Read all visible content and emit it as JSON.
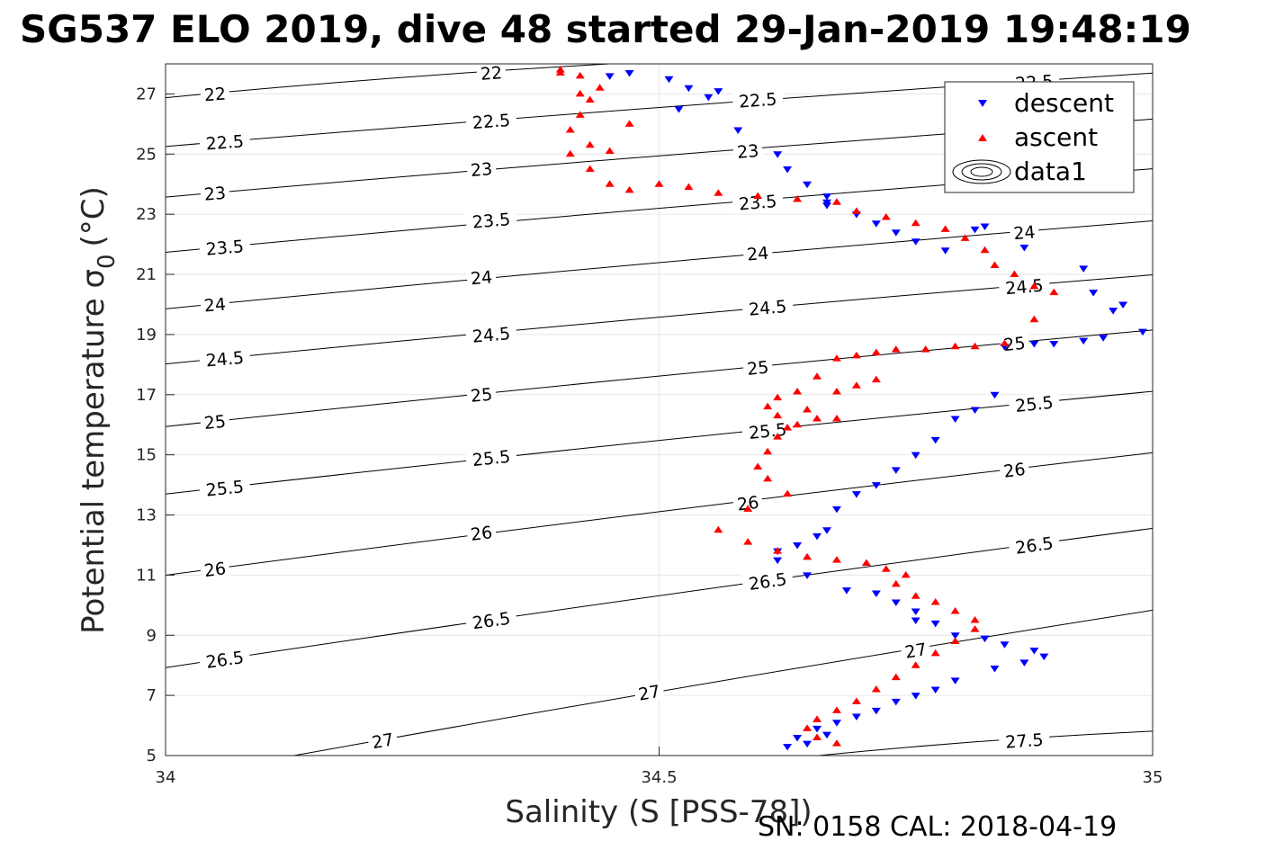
{
  "title": "SG537 ELO 2019, dive 48 started 29-Jan-2019 19:48:19",
  "footer": "SN: 0158  CAL: 2018-04-19",
  "chart_data": {
    "type": "scatter",
    "xlabel": "Salinity (S [PSS-78])",
    "ylabel": "Potential temperature σ₀ (°C)",
    "ylabel_main": "Potential temperature σ",
    "ylabel_sub": "0",
    "ylabel_unit": "(°C)",
    "xlim": [
      34,
      35
    ],
    "ylim": [
      5,
      28
    ],
    "xticks": [
      34,
      34.5,
      35
    ],
    "xtick_labels": [
      "34",
      "34.5",
      "35"
    ],
    "yticks": [
      5,
      7,
      9,
      11,
      13,
      15,
      17,
      19,
      21,
      23,
      25,
      27
    ],
    "ytick_labels": [
      "5",
      "7",
      "9",
      "11",
      "13",
      "15",
      "17",
      "19",
      "21",
      "23",
      "25",
      "27"
    ],
    "grid": true,
    "legend_position": "top-right",
    "legend": [
      {
        "label": "descent",
        "marker": "triangle-down",
        "color": "#0000ff"
      },
      {
        "label": "ascent",
        "marker": "triangle-up",
        "color": "#ff0000"
      },
      {
        "label": "data1",
        "marker": "contour",
        "color": "#000000"
      }
    ],
    "contours": [
      {
        "level": "22",
        "label_points": [
          [
            34.05,
            27.0
          ],
          [
            34.33,
            27.7
          ]
        ]
      },
      {
        "level": "22.5",
        "label_points": [
          [
            34.06,
            25.4
          ],
          [
            34.33,
            26.1
          ],
          [
            34.6,
            26.8
          ],
          [
            34.88,
            27.4
          ]
        ]
      },
      {
        "level": "23",
        "label_points": [
          [
            34.05,
            23.7
          ],
          [
            34.32,
            24.5
          ],
          [
            34.59,
            25.1
          ]
        ]
      },
      {
        "level": "23.5",
        "label_points": [
          [
            34.06,
            21.9
          ],
          [
            34.33,
            22.8
          ],
          [
            34.6,
            23.4
          ]
        ]
      },
      {
        "level": "24",
        "label_points": [
          [
            34.05,
            20.0
          ],
          [
            34.32,
            20.9
          ],
          [
            34.6,
            21.7
          ],
          [
            34.87,
            22.4
          ]
        ]
      },
      {
        "level": "24.5",
        "label_points": [
          [
            34.06,
            18.2
          ],
          [
            34.33,
            19.0
          ],
          [
            34.61,
            19.9
          ],
          [
            34.87,
            20.6
          ]
        ]
      },
      {
        "level": "25",
        "label_points": [
          [
            34.05,
            16.1
          ],
          [
            34.32,
            17.0
          ],
          [
            34.6,
            17.9
          ],
          [
            34.86,
            18.7
          ]
        ]
      },
      {
        "level": "25.5",
        "label_points": [
          [
            34.06,
            13.9
          ],
          [
            34.33,
            14.9
          ],
          [
            34.61,
            15.8
          ],
          [
            34.88,
            16.7
          ]
        ]
      },
      {
        "level": "26",
        "label_points": [
          [
            34.05,
            11.2
          ],
          [
            34.32,
            12.4
          ],
          [
            34.59,
            13.4
          ],
          [
            34.86,
            14.5
          ]
        ]
      },
      {
        "level": "26.5",
        "label_points": [
          [
            34.06,
            8.2
          ],
          [
            34.33,
            9.5
          ],
          [
            34.61,
            10.8
          ],
          [
            34.88,
            12.0
          ]
        ]
      },
      {
        "level": "27",
        "label_points": [
          [
            34.22,
            5.5
          ],
          [
            34.49,
            7.1
          ],
          [
            34.76,
            8.5
          ]
        ]
      },
      {
        "level": "27.5",
        "label_points": [
          [
            34.87,
            5.5
          ]
        ]
      }
    ],
    "series": [
      {
        "name": "descent",
        "marker": "triangle-down",
        "color": "#0000ff",
        "x": [
          34.45,
          34.47,
          34.51,
          34.53,
          34.52,
          34.55,
          34.56,
          34.58,
          34.62,
          34.63,
          34.65,
          34.67,
          34.67,
          34.67,
          34.7,
          34.72,
          34.74,
          34.76,
          34.79,
          34.82,
          34.83,
          34.87,
          34.93,
          34.94,
          34.96,
          34.97,
          34.99,
          34.95,
          34.93,
          34.9,
          34.88,
          34.85,
          34.84,
          34.82,
          34.8,
          34.78,
          34.76,
          34.74,
          34.72,
          34.7,
          34.68,
          34.67,
          34.66,
          34.64,
          34.62,
          34.62,
          34.65,
          34.69,
          34.72,
          34.74,
          34.76,
          34.76,
          34.78,
          34.8,
          34.83,
          34.85,
          34.88,
          34.89,
          34.87,
          34.84,
          34.8,
          34.78,
          34.76,
          34.74,
          34.72,
          34.7,
          34.68,
          34.66,
          34.64,
          34.63,
          34.65,
          34.67
        ],
        "y": [
          27.6,
          27.7,
          27.5,
          27.2,
          26.5,
          26.9,
          27.1,
          25.8,
          25.0,
          24.5,
          24.0,
          23.6,
          23.3,
          23.4,
          23.0,
          22.7,
          22.4,
          22.1,
          21.8,
          22.5,
          22.6,
          21.9,
          21.2,
          20.4,
          19.8,
          20.0,
          19.1,
          18.9,
          18.8,
          18.7,
          18.7,
          18.6,
          17.0,
          16.5,
          16.2,
          15.5,
          15.0,
          14.5,
          14.0,
          13.7,
          13.2,
          12.5,
          12.3,
          12.0,
          11.8,
          11.5,
          11.0,
          10.5,
          10.4,
          10.1,
          9.8,
          9.5,
          9.4,
          9.0,
          8.9,
          8.7,
          8.5,
          8.3,
          8.1,
          7.9,
          7.5,
          7.2,
          7.0,
          6.8,
          6.5,
          6.3,
          6.1,
          5.9,
          5.6,
          5.3,
          5.4,
          5.7
        ]
      },
      {
        "name": "ascent",
        "marker": "triangle-up",
        "color": "#ff0000",
        "x": [
          34.4,
          34.42,
          34.44,
          34.43,
          34.42,
          34.41,
          34.43,
          34.45,
          34.47,
          34.42,
          34.4,
          34.41,
          34.43,
          34.45,
          34.47,
          34.5,
          34.53,
          34.56,
          34.6,
          34.64,
          34.68,
          34.7,
          34.73,
          34.76,
          34.79,
          34.81,
          34.83,
          34.84,
          34.86,
          34.88,
          34.9,
          34.88,
          34.85,
          34.82,
          34.8,
          34.77,
          34.74,
          34.72,
          34.7,
          34.68,
          34.66,
          34.64,
          34.62,
          34.61,
          34.62,
          34.64,
          34.66,
          34.68,
          34.7,
          34.72,
          34.68,
          34.65,
          34.63,
          34.62,
          34.61,
          34.6,
          34.61,
          34.63,
          34.59,
          34.56,
          34.59,
          34.62,
          34.65,
          34.68,
          34.71,
          34.73,
          34.75,
          34.74,
          34.76,
          34.78,
          34.8,
          34.82,
          34.82,
          34.8,
          34.78,
          34.76,
          34.74,
          34.72,
          34.7,
          34.68,
          34.66,
          34.65,
          34.66,
          34.68
        ],
        "y": [
          27.8,
          27.6,
          27.2,
          26.8,
          26.3,
          25.8,
          25.3,
          25.1,
          26.0,
          27.0,
          27.7,
          25.0,
          24.5,
          24.0,
          23.8,
          24.0,
          23.9,
          23.7,
          23.6,
          23.5,
          23.4,
          23.1,
          22.9,
          22.7,
          22.5,
          22.2,
          21.8,
          21.3,
          21.0,
          20.6,
          20.4,
          19.5,
          18.7,
          18.6,
          18.6,
          18.5,
          18.5,
          18.4,
          18.3,
          18.2,
          17.6,
          17.1,
          16.9,
          16.6,
          16.3,
          16.0,
          16.2,
          16.2,
          17.3,
          17.5,
          17.1,
          16.5,
          15.9,
          15.6,
          15.1,
          14.6,
          14.2,
          13.7,
          13.2,
          12.5,
          12.1,
          11.8,
          11.6,
          11.5,
          11.4,
          11.2,
          11.0,
          10.7,
          10.3,
          10.1,
          9.8,
          9.5,
          9.2,
          8.8,
          8.4,
          8.0,
          7.6,
          7.2,
          6.8,
          6.5,
          6.2,
          5.9,
          5.6,
          5.4
        ]
      }
    ]
  }
}
